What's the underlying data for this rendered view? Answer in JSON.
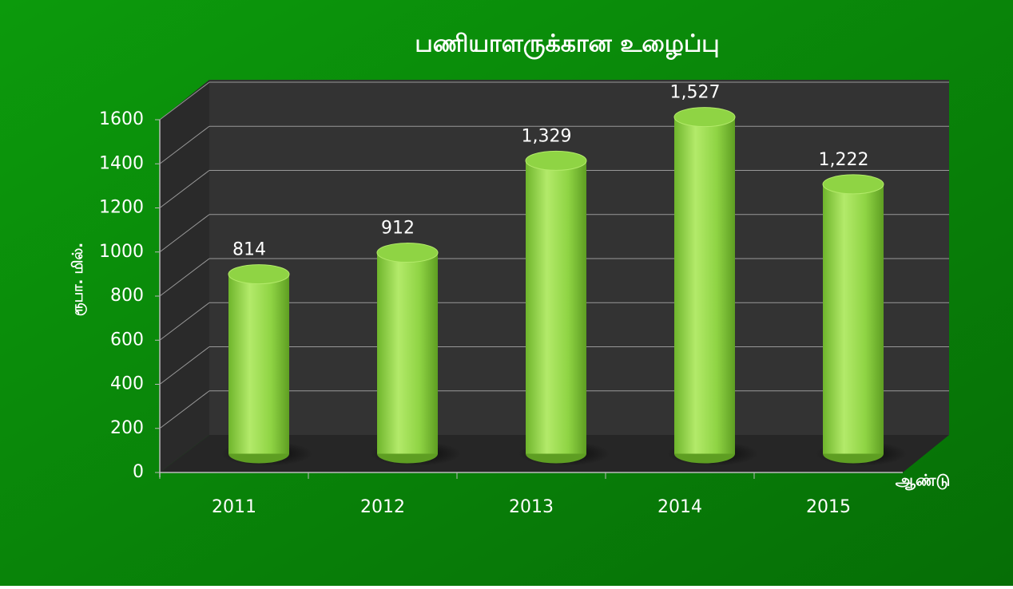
{
  "chart_data": {
    "type": "bar",
    "title": "பணியாளருக்கான உழைப்பு",
    "y_label": "ரூபா. மில்.",
    "x_label": "ஆண்டு",
    "categories": [
      "2011",
      "2012",
      "2013",
      "2014",
      "2015"
    ],
    "values": [
      814,
      912,
      1329,
      1527,
      1222
    ],
    "value_labels": [
      "814",
      "912",
      "1,329",
      "1,527",
      "1,222"
    ],
    "color": "#8fd444",
    "ylim": [
      0,
      1600
    ],
    "yticks": [
      0,
      200,
      400,
      600,
      800,
      1000,
      1200,
      1400,
      1600
    ],
    "grid": true
  }
}
